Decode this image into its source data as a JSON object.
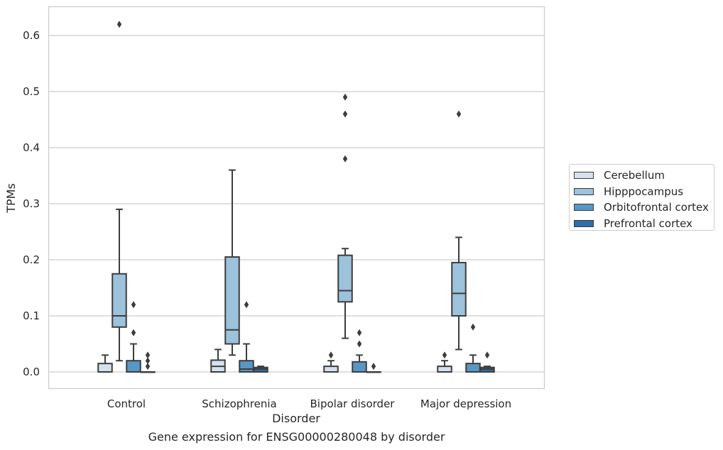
{
  "chart_data": {
    "type": "box",
    "title": "",
    "caption": "Gene expression for ENSG00000280048 by disorder",
    "xlabel": "Disorder",
    "ylabel": "TPMs",
    "ylim": [
      -0.03,
      0.65
    ],
    "yticks": [
      "0.0",
      "0.1",
      "0.2",
      "0.3",
      "0.4",
      "0.5",
      "0.6"
    ],
    "ytick_values": [
      0.0,
      0.1,
      0.2,
      0.3,
      0.4,
      0.5,
      0.6
    ],
    "categories": [
      "Control",
      "Schizophrenia",
      "Bipolar disorder",
      "Major depression"
    ],
    "grid": "horizontal",
    "legend_position": "right",
    "series": [
      {
        "name": "Cerebellum",
        "color": "#d4e1ef",
        "boxes": [
          {
            "q1": 0.0,
            "median": 0.0,
            "q3": 0.015,
            "whisker_low": 0.0,
            "whisker_high": 0.03,
            "outliers": []
          },
          {
            "q1": 0.0,
            "median": 0.01,
            "q3": 0.021,
            "whisker_low": 0.0,
            "whisker_high": 0.04,
            "outliers": []
          },
          {
            "q1": 0.0,
            "median": 0.0,
            "q3": 0.01,
            "whisker_low": 0.0,
            "whisker_high": 0.02,
            "outliers": [
              0.03
            ]
          },
          {
            "q1": 0.0,
            "median": 0.0,
            "q3": 0.01,
            "whisker_low": 0.0,
            "whisker_high": 0.02,
            "outliers": [
              0.03
            ]
          }
        ]
      },
      {
        "name": "Hipppocampus",
        "color": "#9cc2dc",
        "boxes": [
          {
            "q1": 0.08,
            "median": 0.1,
            "q3": 0.175,
            "whisker_low": 0.02,
            "whisker_high": 0.29,
            "outliers": [
              0.62
            ]
          },
          {
            "q1": 0.05,
            "median": 0.075,
            "q3": 0.205,
            "whisker_low": 0.03,
            "whisker_high": 0.36,
            "outliers": []
          },
          {
            "q1": 0.125,
            "median": 0.145,
            "q3": 0.208,
            "whisker_low": 0.06,
            "whisker_high": 0.22,
            "outliers": [
              0.38,
              0.46,
              0.49
            ]
          },
          {
            "q1": 0.1,
            "median": 0.14,
            "q3": 0.195,
            "whisker_low": 0.04,
            "whisker_high": 0.24,
            "outliers": [
              0.46
            ]
          }
        ]
      },
      {
        "name": "Orbitofrontal cortex",
        "color": "#5897c4",
        "boxes": [
          {
            "q1": 0.0,
            "median": 0.0,
            "q3": 0.02,
            "whisker_low": 0.0,
            "whisker_high": 0.05,
            "outliers": [
              0.07,
              0.12
            ]
          },
          {
            "q1": 0.0,
            "median": 0.005,
            "q3": 0.02,
            "whisker_low": 0.0,
            "whisker_high": 0.05,
            "outliers": [
              0.12
            ]
          },
          {
            "q1": 0.0,
            "median": 0.0,
            "q3": 0.018,
            "whisker_low": 0.0,
            "whisker_high": 0.03,
            "outliers": [
              0.05,
              0.07
            ]
          },
          {
            "q1": 0.0,
            "median": 0.0,
            "q3": 0.015,
            "whisker_low": 0.0,
            "whisker_high": 0.03,
            "outliers": [
              0.08
            ]
          }
        ]
      },
      {
        "name": "Prefrontal cortex",
        "color": "#2f6ea8",
        "boxes": [
          {
            "q1": 0.0,
            "median": 0.0,
            "q3": 0.0,
            "whisker_low": 0.0,
            "whisker_high": 0.0,
            "outliers": [
              0.01,
              0.02,
              0.03
            ]
          },
          {
            "q1": 0.0,
            "median": 0.005,
            "q3": 0.008,
            "whisker_low": 0.0,
            "whisker_high": 0.01,
            "outliers": []
          },
          {
            "q1": 0.0,
            "median": 0.0,
            "q3": 0.0,
            "whisker_low": 0.0,
            "whisker_high": 0.0,
            "outliers": [
              0.01
            ]
          },
          {
            "q1": 0.0,
            "median": 0.005,
            "q3": 0.008,
            "whisker_low": 0.0,
            "whisker_high": 0.01,
            "outliers": [
              0.03
            ]
          }
        ]
      }
    ]
  }
}
